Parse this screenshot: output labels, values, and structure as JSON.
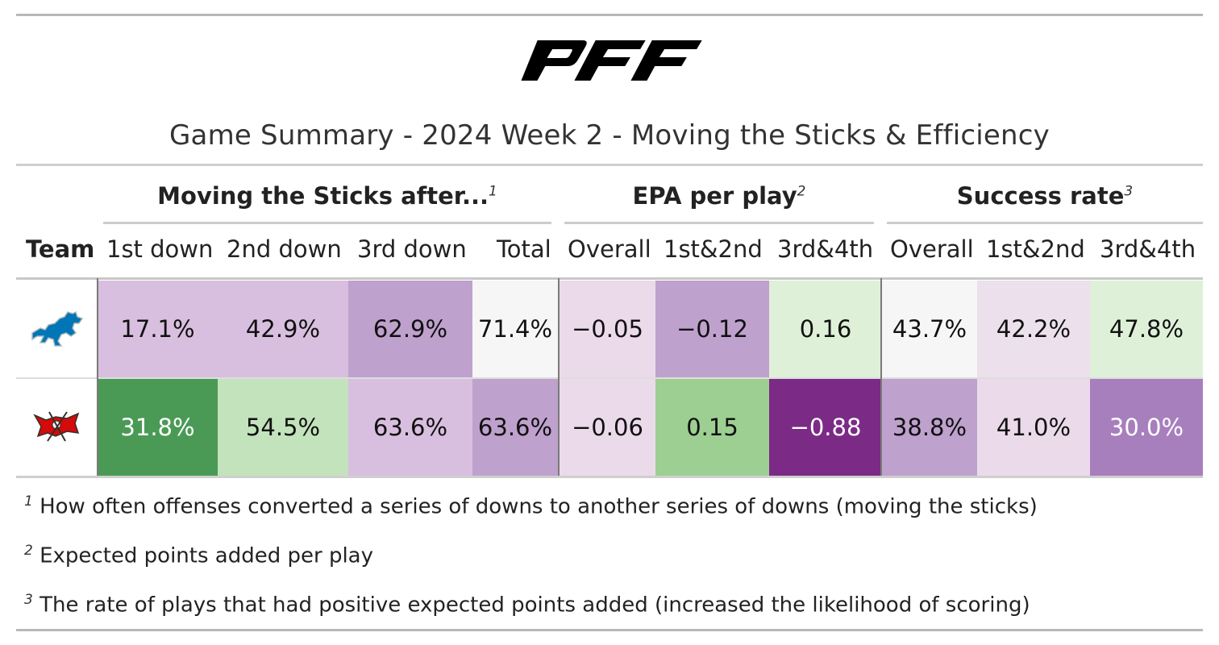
{
  "header": {
    "logo_text": "PFF",
    "title": "Game Summary - 2024 Week 2 - Moving the Sticks & Efficiency"
  },
  "spanners": [
    {
      "label": "Moving the Sticks after...",
      "footnote_mark": "1"
    },
    {
      "label": "EPA per play",
      "footnote_mark": "2"
    },
    {
      "label": "Success rate",
      "footnote_mark": "3"
    }
  ],
  "columns": [
    "Team",
    "1st down",
    "2nd down",
    "3rd down",
    "Total",
    "Overall",
    "1st&2nd",
    "3rd&4th",
    "Overall",
    "1st&2nd",
    "3rd&4th"
  ],
  "chart_data": {
    "type": "table",
    "title": "Game Summary - 2024 Week 2 - Moving the Sticks & Efficiency",
    "rows": [
      {
        "team": "lions-logo",
        "cells": [
          {
            "text": "17.1%",
            "color": "#d9bfdf",
            "text_color": "#111111"
          },
          {
            "text": "42.9%",
            "color": "#d9bfdf",
            "text_color": "#111111"
          },
          {
            "text": "62.9%",
            "color": "#bfa1cd",
            "text_color": "#111111"
          },
          {
            "text": "71.4%",
            "color": "#f6f6f6",
            "text_color": "#111111"
          },
          {
            "text": "−0.05",
            "color": "#ebdaea",
            "text_color": "#111111"
          },
          {
            "text": "−0.12",
            "color": "#bfa1cd",
            "text_color": "#111111"
          },
          {
            "text": "0.16",
            "color": "#dff0d8",
            "text_color": "#111111"
          },
          {
            "text": "43.7%",
            "color": "#f6f6f6",
            "text_color": "#111111"
          },
          {
            "text": "42.2%",
            "color": "#ebe0ec",
            "text_color": "#111111"
          },
          {
            "text": "47.8%",
            "color": "#dff0d8",
            "text_color": "#111111"
          }
        ]
      },
      {
        "team": "buccaneers-logo",
        "cells": [
          {
            "text": "31.8%",
            "color": "#4a9a55",
            "text_color": "#ffffff"
          },
          {
            "text": "54.5%",
            "color": "#c2e3bb",
            "text_color": "#111111"
          },
          {
            "text": "63.6%",
            "color": "#d9bfdf",
            "text_color": "#111111"
          },
          {
            "text": "63.6%",
            "color": "#bfa1cd",
            "text_color": "#111111"
          },
          {
            "text": "−0.06",
            "color": "#ebdaea",
            "text_color": "#111111"
          },
          {
            "text": "0.15",
            "color": "#9dcf92",
            "text_color": "#111111"
          },
          {
            "text": "−0.88",
            "color": "#7b2a86",
            "text_color": "#ffffff"
          },
          {
            "text": "38.8%",
            "color": "#bfa1cd",
            "text_color": "#111111"
          },
          {
            "text": "41.0%",
            "color": "#ebdaea",
            "text_color": "#111111"
          },
          {
            "text": "30.0%",
            "color": "#a77fbd",
            "text_color": "#ffffff"
          }
        ]
      }
    ]
  },
  "footnotes": [
    {
      "mark": "1",
      "text": "How often offenses converted a series of downs to another series of downs (moving the sticks)"
    },
    {
      "mark": "2",
      "text": "Expected points added per play"
    },
    {
      "mark": "3",
      "text": "The rate of plays that had positive expected points added (increased the likelihood of scoring)"
    }
  ]
}
